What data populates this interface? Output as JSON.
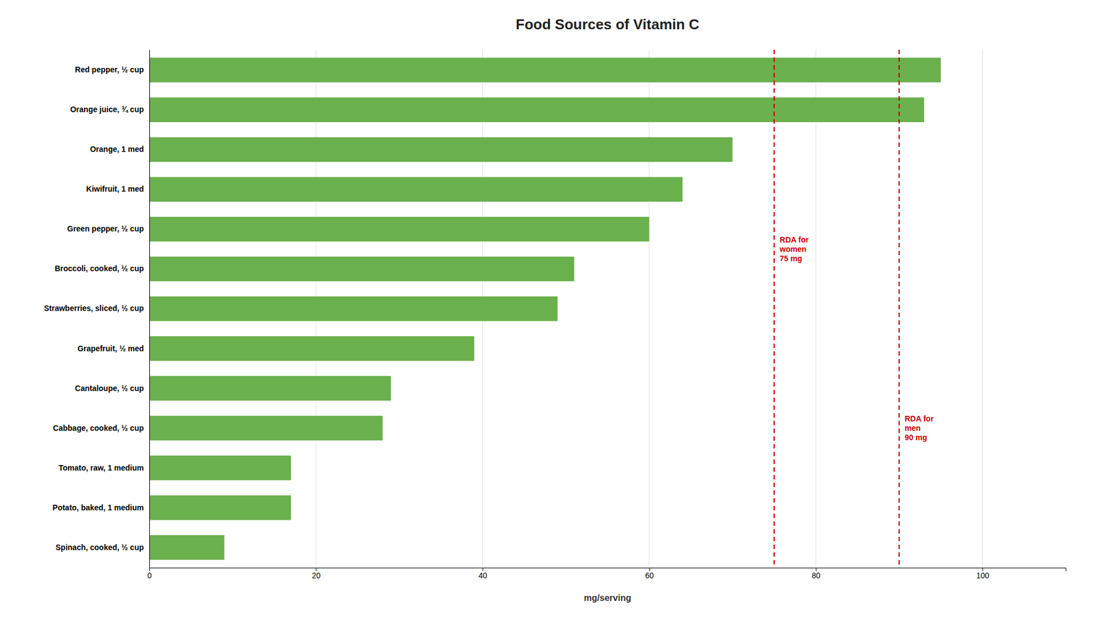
{
  "chart_data": {
    "type": "bar",
    "orientation": "horizontal",
    "title": "Food Sources of Vitamin C",
    "x_label": "mg/serving",
    "categories": [
      "Red pepper, ½ cup",
      "Orange juice, ¾ cup",
      "Orange, 1 med",
      "Kiwifruit, 1 med",
      "Green pepper, ½ cup",
      "Broccoli, cooked, ½ cup",
      "Strawberries, sliced, ½ cup",
      "Grapefruit, ½ med",
      "Cantaloupe, ½ cup",
      "Cabbage, cooked, ½ cup",
      "Tomato, raw, 1 medium",
      "Potato, baked, 1 medium",
      "Spinach, cooked, ½ cup"
    ],
    "values": [
      95,
      93,
      70,
      64,
      60,
      51,
      49,
      39,
      29,
      28,
      17,
      17,
      9
    ],
    "color": "#6ab04c",
    "xlim": [
      0,
      110
    ],
    "xticks": [
      0,
      20,
      40,
      60,
      80,
      100
    ],
    "grid": true,
    "reference_lines": [
      {
        "value": 75,
        "label": "RDA for\nwomen\n75 mg",
        "color": "#cc0000"
      },
      {
        "value": 90,
        "label": "RDA for\nmen\n90 mg",
        "color": "#cc0000"
      }
    ]
  }
}
